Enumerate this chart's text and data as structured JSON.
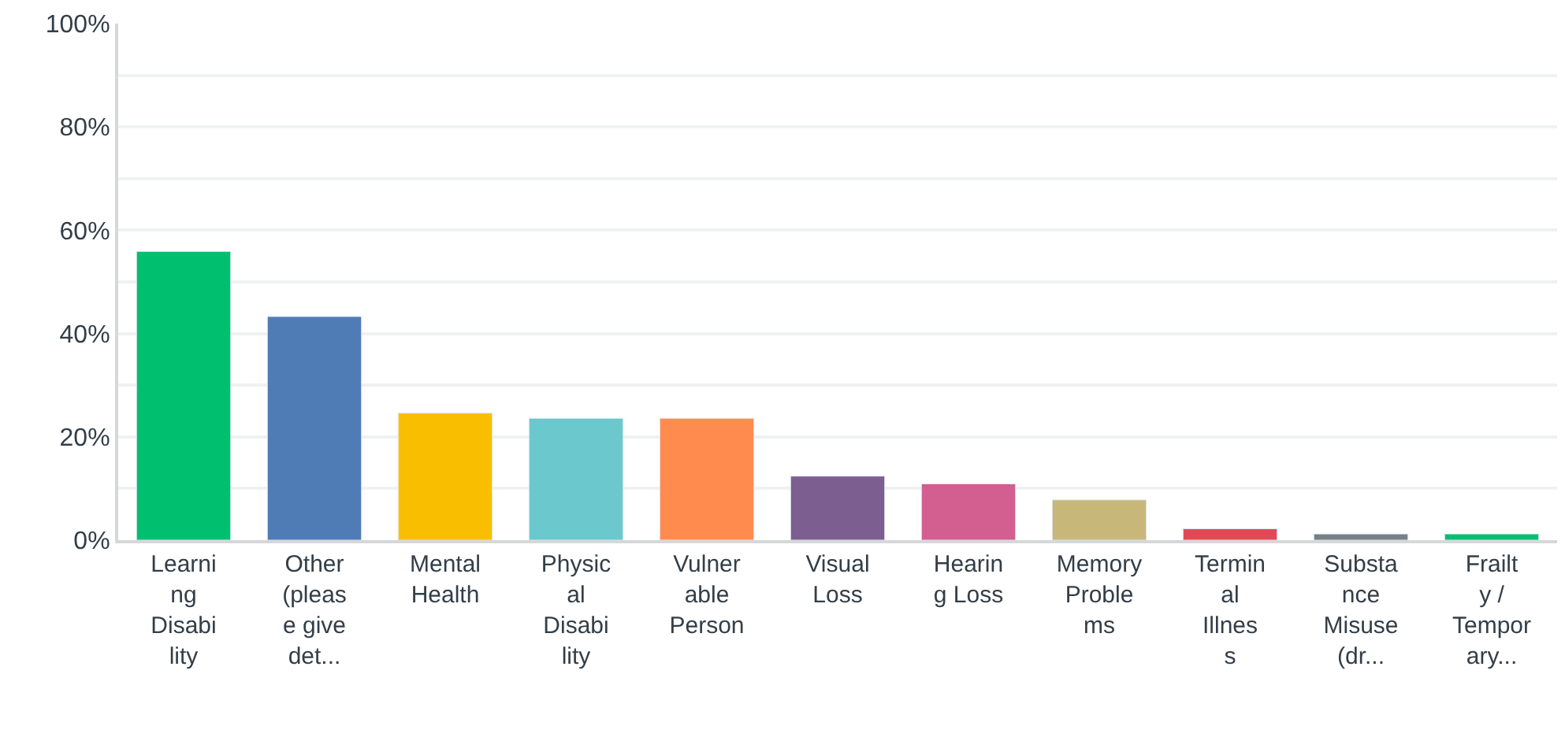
{
  "chart_data": {
    "type": "bar",
    "categories": [
      "Learning Disability",
      "Other (please give det...",
      "Mental Health",
      "Physical Disability",
      "Vulnerable Person",
      "Visual Loss",
      "Hearing Loss",
      "Memory Problems",
      "Terminal Illness",
      "Substance Misuse (dr...",
      "Frailty / Temporary..."
    ],
    "values": [
      55.9,
      43.3,
      24.6,
      23.6,
      23.6,
      12.4,
      10.9,
      7.8,
      2.2,
      1.2,
      1.2
    ],
    "colors": [
      "#00bf6f",
      "#507cb6",
      "#f9be00",
      "#6bc8cd",
      "#ff8b4f",
      "#7d5e90",
      "#d25f90",
      "#c7b879",
      "#e04a56",
      "#768086",
      "#00bf6f"
    ],
    "ylim": [
      0,
      100
    ],
    "yticks": [
      {
        "value": 0,
        "label": "0%"
      },
      {
        "value": 10,
        "label": null
      },
      {
        "value": 20,
        "label": "20%"
      },
      {
        "value": 30,
        "label": null
      },
      {
        "value": 40,
        "label": "40%"
      },
      {
        "value": 50,
        "label": null
      },
      {
        "value": 60,
        "label": "60%"
      },
      {
        "value": 70,
        "label": null
      },
      {
        "value": 80,
        "label": "80%"
      },
      {
        "value": 90,
        "label": null
      },
      {
        "value": 100,
        "label": "100%"
      }
    ],
    "grid": "y"
  }
}
